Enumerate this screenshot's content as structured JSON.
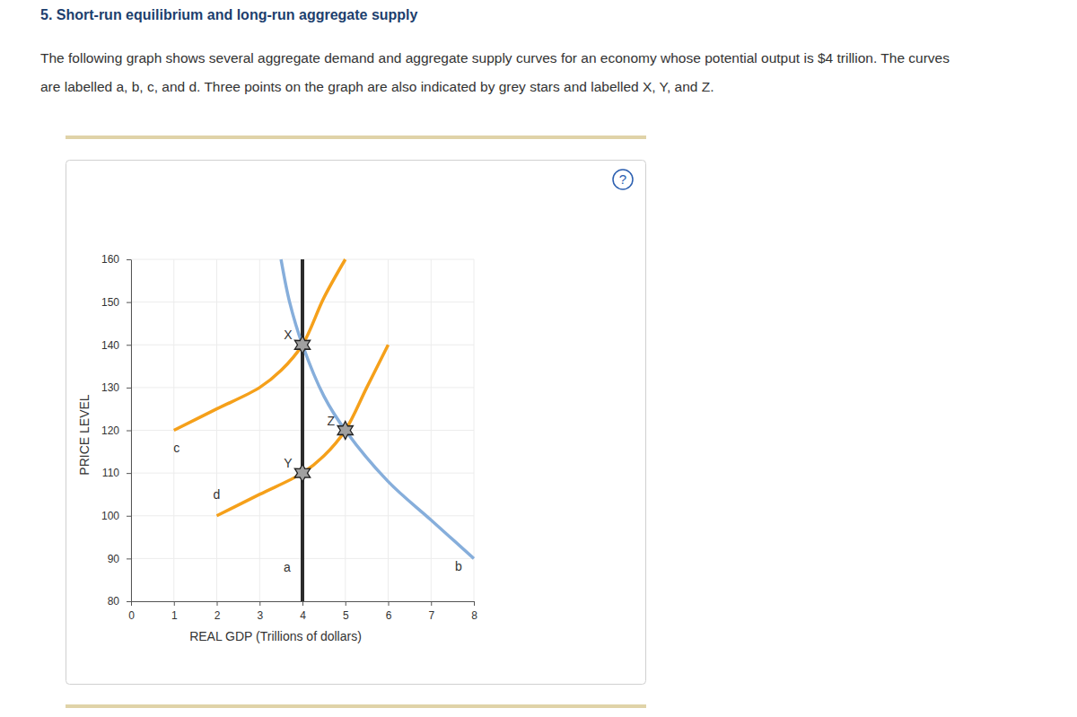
{
  "header": {
    "title": "5. Short-run equilibrium and long-run aggregate supply",
    "text": [
      "The following graph shows several aggregate demand and aggregate supply curves for an economy whose potential output is $4 trillion. The curves",
      "are labelled a, b, c, and d. Three points on the graph are also indicated by grey stars and labelled X, Y, and Z."
    ],
    "help_icon": "?"
  },
  "chart_data": {
    "type": "line",
    "x_label": "REAL GDP (Trillions of dollars)",
    "y_label": "PRICE LEVEL",
    "xlim": [
      0,
      8
    ],
    "ylim": [
      80,
      160
    ],
    "xticks": [
      0,
      1,
      2,
      3,
      4,
      5,
      6,
      7,
      8
    ],
    "yticks": [
      80,
      90,
      100,
      110,
      120,
      130,
      140,
      150,
      160
    ],
    "grid": true,
    "series": [
      {
        "name": "a",
        "color": "#2b2b2b",
        "x": [
          4,
          4
        ],
        "y": [
          160,
          80
        ]
      },
      {
        "name": "b",
        "color": "#86aedb",
        "x": [
          3.5,
          3.7,
          4,
          4.5,
          5,
          6,
          7,
          8
        ],
        "y": [
          160,
          150,
          140,
          128,
          120,
          108,
          99,
          90
        ]
      },
      {
        "name": "c",
        "color": "#f5a01a",
        "x": [
          1,
          2,
          3,
          3.5,
          4,
          4.5,
          5
        ],
        "y": [
          120,
          125,
          130,
          134,
          140,
          151,
          160
        ]
      },
      {
        "name": "d",
        "color": "#f5a01a",
        "x": [
          2,
          3,
          4,
          4.5,
          5,
          5.5,
          6
        ],
        "y": [
          100,
          105,
          110,
          114,
          120,
          130,
          140
        ]
      }
    ],
    "points": [
      {
        "label": "X",
        "x": 4,
        "y": 140
      },
      {
        "label": "Y",
        "x": 4,
        "y": 110
      },
      {
        "label": "Z",
        "x": 5,
        "y": 120
      }
    ],
    "marker": "star"
  }
}
